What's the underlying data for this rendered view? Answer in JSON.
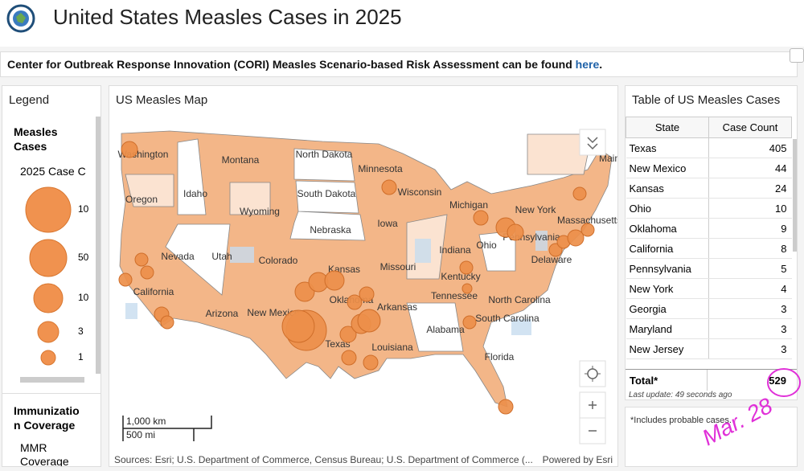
{
  "header": {
    "title": "United States Measles Cases in 2025"
  },
  "banner": {
    "text": "Center for Outbreak Response Innovation (CORI) Measles Scenario-based Risk Assessment can be found ",
    "link": "here",
    "end": "."
  },
  "legend": {
    "title": "Legend",
    "section": "Measles Cases",
    "field": "2025 Case C",
    "sizes": [
      "10",
      "50",
      "10",
      "3",
      "1"
    ],
    "section2": "Immunization Coverage",
    "field2": "MMR Coverage Percentage"
  },
  "map": {
    "title": "US Measles Map",
    "states": [
      "Washington",
      "Montana",
      "North Dakota",
      "Minnesota",
      "Oregon",
      "Idaho",
      "South Dakota",
      "Wisconsin",
      "Wyoming",
      "Michigan",
      "Iowa",
      "Nebraska",
      "New York",
      "Massachusetts",
      "Nevada",
      "Utah",
      "Colorado",
      "Kansas",
      "Missouri",
      "Indiana",
      "Ohio",
      "Pennsylvania",
      "California",
      "Kentucky",
      "Delaware",
      "Oklahoma",
      "Tennessee",
      "North Carolina",
      "Arizona",
      "New Mexico",
      "Arkansas",
      "South Carolina",
      "Alabama",
      "Texas",
      "Louisiana",
      "Florida",
      "Main"
    ],
    "scale_km": "1,000 km",
    "scale_mi": "500 mi",
    "attribution": "Sources: Esri; U.S. Department of Commerce, Census Bureau; U.S. Department of Commerce (...",
    "powered": "Powered by Esri"
  },
  "table": {
    "title": "Table of US Measles Cases",
    "columns": [
      "State",
      "Case Count"
    ],
    "rows": [
      [
        "Texas",
        "405"
      ],
      [
        "New Mexico",
        "44"
      ],
      [
        "Kansas",
        "24"
      ],
      [
        "Ohio",
        "10"
      ],
      [
        "Oklahoma",
        "9"
      ],
      [
        "California",
        "8"
      ],
      [
        "Pennsylvania",
        "5"
      ],
      [
        "New York",
        "4"
      ],
      [
        "Georgia",
        "3"
      ],
      [
        "Maryland",
        "3"
      ],
      [
        "New Jersey",
        "3"
      ]
    ],
    "total_label": "Total*",
    "total": "529",
    "updated": "Last update: 49 seconds ago",
    "note": "*Includes probable cases."
  },
  "annotation": "Mar. 28"
}
